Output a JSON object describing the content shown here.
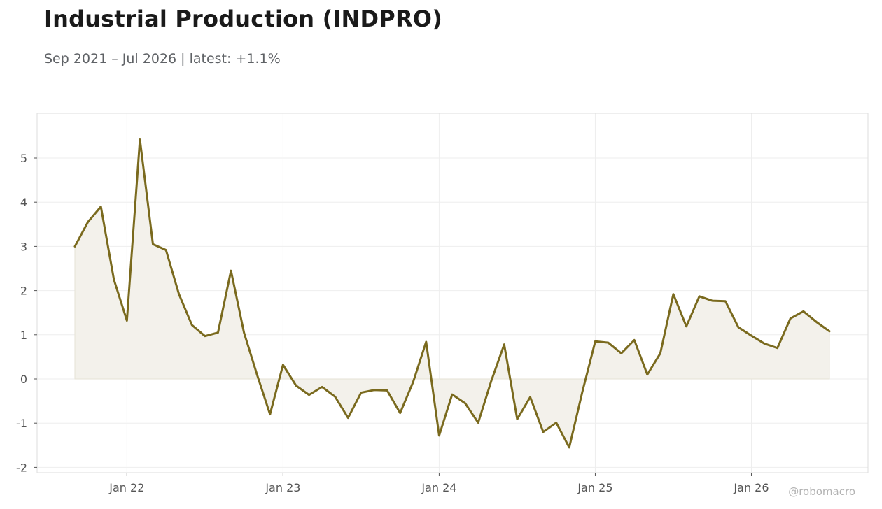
{
  "title": "Industrial Production (INDPRO)",
  "subtitle": "Sep 2021 – Jul 2026 | latest: +1.1%",
  "watermark": "@robomacro",
  "colors": {
    "line": "#7a6a1e",
    "fill": "#f3f1eb",
    "grid": "#eeeeee",
    "frame": "#dddddd"
  },
  "chart_data": {
    "type": "area",
    "title": "Industrial Production (INDPRO)",
    "xlabel": "",
    "ylabel": "",
    "grid": true,
    "x_start": "2021-09",
    "x_end": "2026-07",
    "x": [
      "2021-09",
      "2021-10",
      "2021-11",
      "2021-12",
      "2022-01",
      "2022-02",
      "2022-03",
      "2022-04",
      "2022-05",
      "2022-06",
      "2022-07",
      "2022-08",
      "2022-09",
      "2022-10",
      "2022-11",
      "2022-12",
      "2023-01",
      "2023-02",
      "2023-03",
      "2023-04",
      "2023-05",
      "2023-06",
      "2023-07",
      "2023-08",
      "2023-09",
      "2023-10",
      "2023-11",
      "2023-12",
      "2024-01",
      "2024-02",
      "2024-03",
      "2024-04",
      "2024-05",
      "2024-06",
      "2024-07",
      "2024-08",
      "2024-09",
      "2024-10",
      "2024-11",
      "2024-12",
      "2025-01",
      "2025-02",
      "2025-03",
      "2025-04",
      "2025-05",
      "2025-06",
      "2025-07",
      "2025-08",
      "2025-09",
      "2025-10",
      "2025-11",
      "2025-12",
      "2026-01",
      "2026-02",
      "2026-03",
      "2026-04",
      "2026-05",
      "2026-06",
      "2026-07"
    ],
    "series": [
      {
        "values": [
          3.0,
          3.55,
          3.9,
          2.25,
          1.32,
          5.42,
          3.05,
          2.92,
          1.92,
          1.22,
          0.97,
          1.05,
          2.45,
          1.05,
          0.1,
          -0.8,
          0.32,
          -0.15,
          -0.36,
          -0.18,
          -0.4,
          -0.88,
          -0.31,
          -0.25,
          -0.26,
          -0.77,
          -0.07,
          0.84,
          -1.28,
          -0.35,
          -0.55,
          -0.99,
          -0.05,
          0.78,
          -0.91,
          -0.41,
          -1.2,
          -0.99,
          -1.55,
          -0.3,
          0.85,
          0.82,
          0.58,
          0.88,
          0.1,
          0.58,
          1.92,
          1.19,
          1.87,
          1.77,
          1.76,
          1.17,
          0.98,
          0.8,
          0.7,
          1.37,
          1.53,
          1.29,
          1.08
        ]
      }
    ],
    "ylim": [
      -2.1,
      6.0
    ],
    "y_ticks": [
      -2,
      -1,
      0,
      1,
      2,
      3,
      4,
      5
    ],
    "y_tick_labels": [
      "-2",
      "-1",
      "0",
      "1",
      "2",
      "3",
      "4",
      "5"
    ],
    "x_ticks": [
      "2022-01",
      "2023-01",
      "2024-01",
      "2025-01",
      "2026-01"
    ],
    "x_tick_labels": [
      "Jan 22",
      "Jan 23",
      "Jan 24",
      "Jan 25",
      "Jan 26"
    ]
  }
}
